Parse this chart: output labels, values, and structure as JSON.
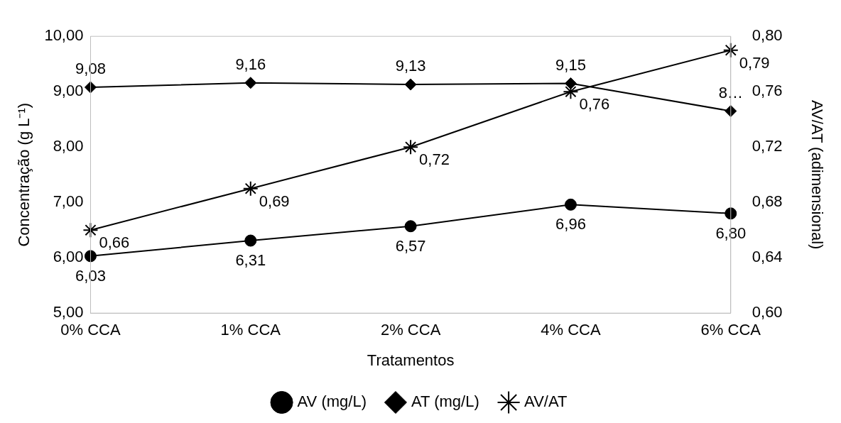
{
  "chart_data": {
    "type": "line",
    "xlabel": "Tratamentos",
    "ylabel": "Concentração (g L⁻¹)",
    "y2label": "AV/AT (adimensional)",
    "categories": [
      "0% CCA",
      "1% CCA",
      "2% CCA",
      "4% CCA",
      "6% CCA"
    ],
    "series": [
      {
        "name": "AV (mg/L)",
        "color": "#000000",
        "marker": "circle",
        "values": [
          6.03,
          6.31,
          6.57,
          6.96,
          6.8
        ],
        "value_labels": [
          "6,03",
          "6,31",
          "6,57",
          "6,96",
          "6,80"
        ]
      },
      {
        "name": "AT (mg/L)",
        "color": "#000000",
        "marker": "diamond",
        "values": [
          9.08,
          9.16,
          9.13,
          9.15,
          8.65
        ],
        "value_labels": [
          "9,08",
          "9,16",
          "9,13",
          "9,15",
          "8…"
        ]
      },
      {
        "name": "AV/AT",
        "color": "#000000",
        "marker": "cross",
        "axis": "y2",
        "values": [
          0.66,
          0.69,
          0.72,
          0.76,
          0.79
        ],
        "value_labels": [
          "0,66",
          "0,69",
          "0,72",
          "0,76",
          "0,79"
        ]
      }
    ],
    "ylim": [
      5,
      10
    ],
    "yticks": [
      {
        "value": 5,
        "label": "5,00"
      },
      {
        "value": 6,
        "label": "6,00"
      },
      {
        "value": 7,
        "label": "7,00"
      },
      {
        "value": 8,
        "label": "8,00"
      },
      {
        "value": 9,
        "label": "9,00"
      },
      {
        "value": 10,
        "label": "10,00"
      }
    ],
    "y2lim": [
      0.6,
      0.8
    ],
    "y2ticks": [
      {
        "value": 0.6,
        "label": "0,60"
      },
      {
        "value": 0.64,
        "label": "0,64"
      },
      {
        "value": 0.68,
        "label": "0,68"
      },
      {
        "value": 0.72,
        "label": "0,72"
      },
      {
        "value": 0.76,
        "label": "0,76"
      },
      {
        "value": 0.8,
        "label": "0,80"
      }
    ],
    "grid": false,
    "legend": "bottom",
    "line_style": "solid"
  }
}
